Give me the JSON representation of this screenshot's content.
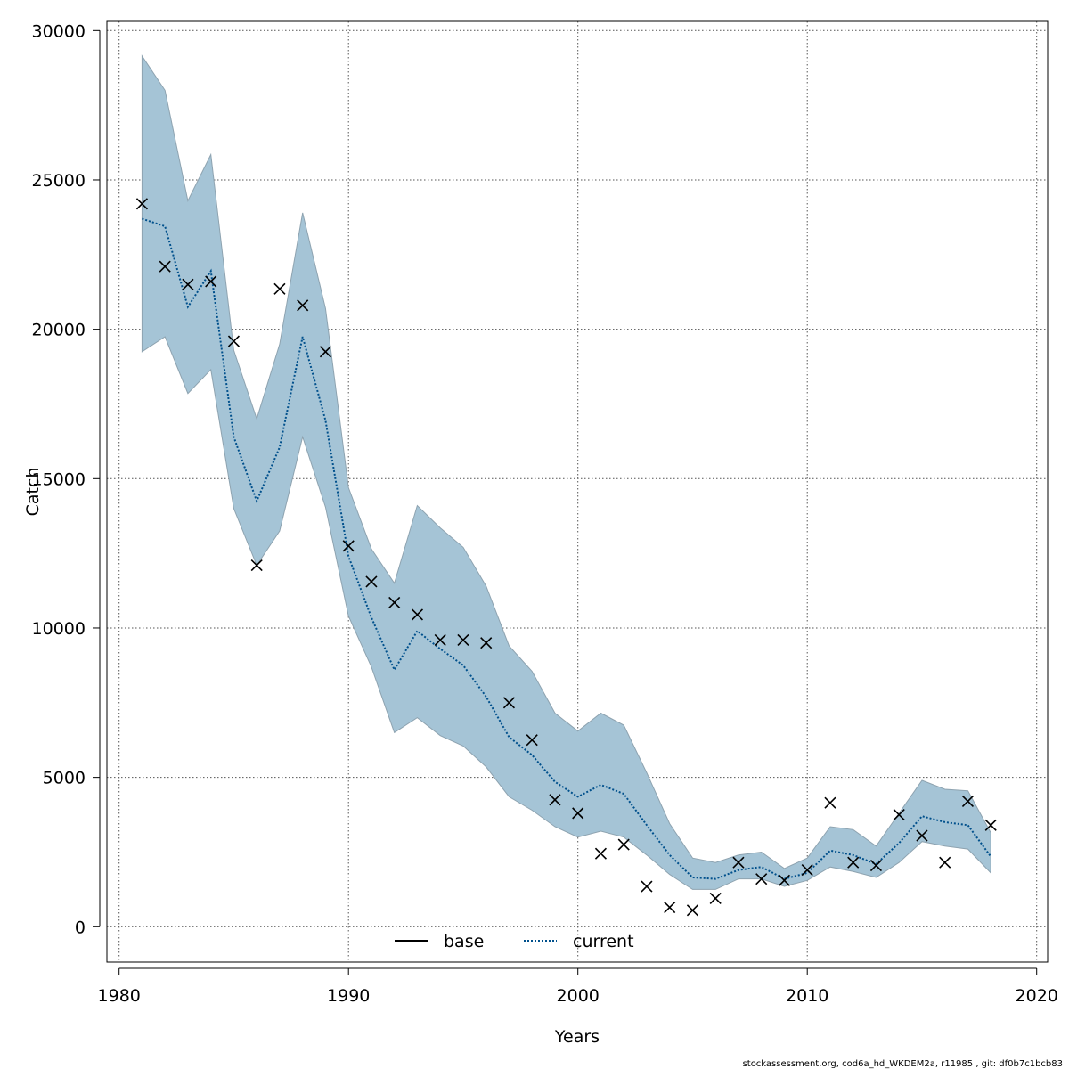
{
  "chart_data": {
    "type": "line",
    "xlabel": "Years",
    "ylabel": "Catch",
    "xlim": [
      1980,
      2020
    ],
    "ylim": [
      0,
      30000
    ],
    "x_ticks": [
      1980,
      1990,
      2000,
      2010,
      2020
    ],
    "y_ticks": [
      0,
      5000,
      10000,
      15000,
      20000,
      25000,
      30000
    ],
    "grid": true,
    "legend_position": "bottom-center",
    "legend": [
      {
        "name": "base",
        "style": "solid",
        "color": "#000000"
      },
      {
        "name": "current",
        "style": "dotted",
        "color": "#00508c"
      }
    ],
    "band_color": "#a5c4d6",
    "x": [
      1981,
      1982,
      1983,
      1984,
      1985,
      1986,
      1987,
      1988,
      1989,
      1990,
      1991,
      1992,
      1993,
      1994,
      1995,
      1996,
      1997,
      1998,
      1999,
      2000,
      2001,
      2002,
      2003,
      2004,
      2005,
      2006,
      2007,
      2008,
      2009,
      2010,
      2011,
      2012,
      2013,
      2014,
      2015,
      2016,
      2017,
      2018
    ],
    "band_upper": [
      29150,
      28000,
      24300,
      25850,
      19300,
      17000,
      19500,
      23900,
      20700,
      14700,
      12650,
      11500,
      14100,
      13350,
      12700,
      11400,
      9400,
      8550,
      7150,
      6550,
      7150,
      6750,
      5150,
      3450,
      2300,
      2150,
      2400,
      2500,
      1950,
      2300,
      3350,
      3250,
      2700,
      3800,
      4900,
      4600,
      4550,
      3150
    ],
    "band_lower": [
      19250,
      19750,
      17850,
      18650,
      14000,
      12100,
      13250,
      16400,
      14050,
      10400,
      8700,
      6500,
      7000,
      6400,
      6050,
      5350,
      4350,
      3900,
      3350,
      3000,
      3200,
      3000,
      2400,
      1750,
      1250,
      1250,
      1600,
      1600,
      1350,
      1550,
      2000,
      1850,
      1650,
      2150,
      2850,
      2700,
      2600,
      1800
    ],
    "series": [
      {
        "name": "current",
        "style": "dotted",
        "values": [
          23700,
          23450,
          20750,
          21950,
          16400,
          14250,
          16050,
          19750,
          16950,
          12400,
          10350,
          8600,
          9900,
          9300,
          8750,
          7700,
          6350,
          5750,
          4850,
          4350,
          4750,
          4450,
          3400,
          2400,
          1650,
          1600,
          1900,
          2000,
          1600,
          1800,
          2550,
          2400,
          2100,
          2800,
          3700,
          3500,
          3400,
          2350
        ]
      },
      {
        "name": "base",
        "style": "solid",
        "values": [
          23700,
          23450,
          20750,
          21950,
          16400,
          14250,
          16050,
          19750,
          16950,
          12400,
          10350,
          8600,
          9900,
          9300,
          8750,
          7700,
          6350,
          5750,
          4850,
          4350,
          4750,
          4450,
          3400,
          2400,
          1650,
          1600,
          1900,
          2000,
          1600,
          1800,
          2550,
          2400,
          2100,
          2800,
          3700,
          3500,
          3400,
          2350
        ]
      }
    ],
    "observed": {
      "marker": "x",
      "values": [
        24200,
        22100,
        21500,
        21600,
        19600,
        12100,
        21350,
        20800,
        19250,
        12750,
        11550,
        10850,
        10450,
        9600,
        9600,
        9500,
        7500,
        6250,
        4250,
        3800,
        2450,
        2750,
        1350,
        650,
        550,
        950,
        2150,
        1600,
        1550,
        1900,
        4150,
        2150,
        2050,
        3750,
        3050,
        2150,
        4200,
        3400
      ]
    }
  },
  "footer": "stockassessment.org, cod6a_hd_WKDEM2a, r11985 , git: df0b7c1bcb83"
}
